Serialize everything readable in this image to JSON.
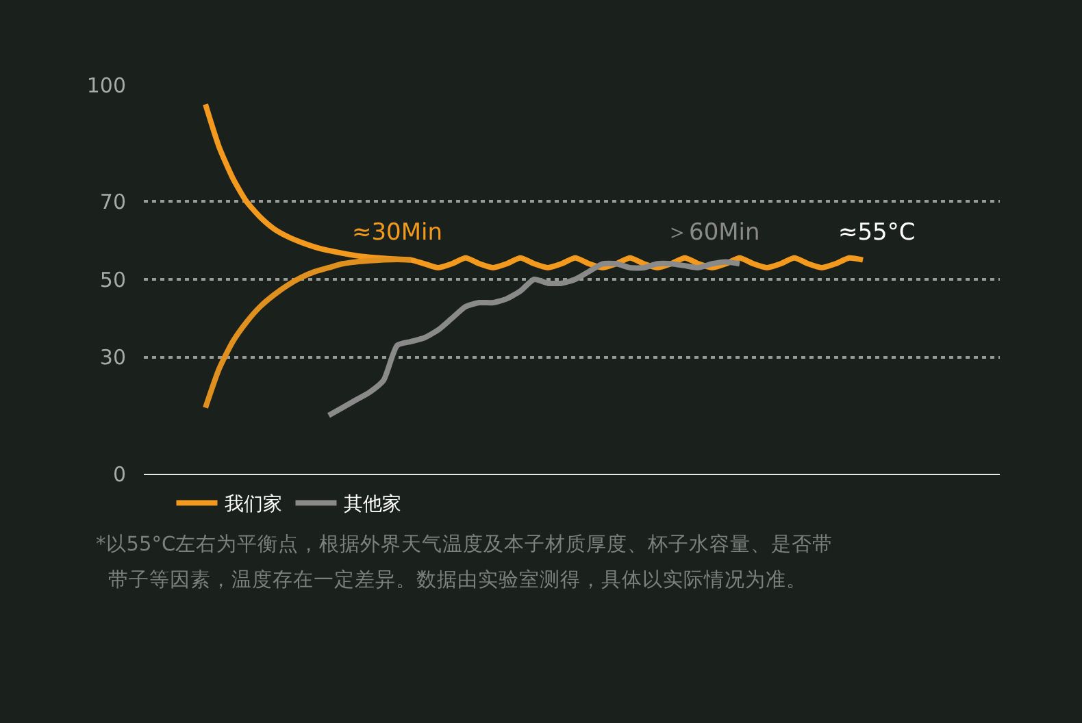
{
  "chart_data": {
    "type": "line",
    "categories": [
      null,
      null,
      null,
      null,
      null,
      null,
      null,
      null,
      null,
      null,
      null,
      null,
      null,
      null,
      null,
      null,
      null,
      null,
      null,
      null,
      null,
      null,
      null,
      null,
      null,
      null,
      null,
      null,
      null,
      null,
      null,
      null,
      null,
      null,
      null,
      null,
      null,
      null,
      null,
      null,
      null,
      null,
      null,
      null,
      null,
      null,
      null,
      null,
      null
    ],
    "series": [
      {
        "name": "我们家",
        "color": "#f39a1e",
        "values": [
          95,
          84,
          76,
          70,
          66,
          63,
          61,
          59.5,
          58.3,
          57.4,
          56.7,
          56.1,
          55.7,
          55.4,
          55.2,
          55,
          54,
          53,
          54,
          55.5,
          54,
          53,
          54,
          55.5,
          54,
          53,
          54,
          55.5,
          54,
          53,
          54,
          55.5,
          54,
          53,
          54,
          55.5,
          54,
          53,
          54,
          55.5,
          54,
          53,
          54,
          55.5,
          54,
          53,
          54,
          55.5,
          55
        ]
      },
      {
        "color": "#e0901e",
        "values": [
          17,
          27,
          34,
          39,
          43,
          46,
          48.5,
          50.5,
          52,
          53,
          54,
          54.5,
          54.8,
          55,
          55.1,
          55,
          null,
          null,
          null,
          null,
          null,
          null,
          null,
          null,
          null,
          null,
          null,
          null,
          null,
          null,
          null,
          null,
          null,
          null,
          null,
          null,
          null,
          null,
          null,
          null,
          null,
          null,
          null,
          null,
          null,
          null,
          null,
          null,
          null
        ]
      },
      {
        "name": "其他家",
        "color": "#8a8a8a",
        "values": [
          null,
          null,
          null,
          null,
          null,
          null,
          null,
          null,
          null,
          15,
          17,
          19,
          21,
          24,
          33,
          34,
          35,
          37,
          40,
          43,
          44,
          44,
          45,
          47,
          50,
          49,
          49,
          50,
          52,
          54,
          54,
          53,
          53,
          54,
          54,
          53.5,
          53,
          54,
          54.5,
          54,
          null,
          null,
          null,
          null,
          null,
          null,
          null,
          null,
          null
        ]
      }
    ],
    "ylim": [
      0,
      100
    ],
    "yticks": [
      0,
      30,
      50,
      70,
      100
    ],
    "grid": "y",
    "legend": "bottom left",
    "tick_labels": "y",
    "line_style": "solid",
    "annotations": [
      "≈30Min",
      "＞60Min",
      "≈55°C",
      "*以55°C左右为平衡点，根据外界天气温度及本子材质厚度、杯子水容量、是否带",
      "带子等因素，温度存在一定差异。数据由实验室测得，具体以实际情况为准。"
    ]
  }
}
